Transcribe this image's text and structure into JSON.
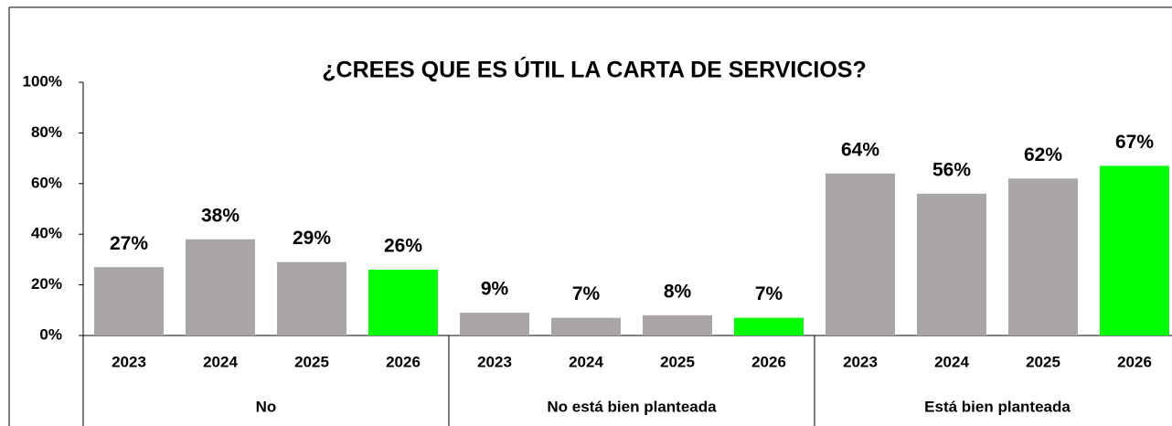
{
  "chart_data": {
    "type": "bar",
    "title": "¿CREES QUE ES ÚTIL LA CARTA DE SERVICIOS?",
    "groups": [
      {
        "name": "No",
        "categories": [
          "2023",
          "2024",
          "2025",
          "2026"
        ],
        "values": [
          27,
          38,
          29,
          26
        ],
        "value_labels": [
          "27%",
          "38%",
          "29%",
          "26%"
        ],
        "colors": [
          "#aaa6a5",
          "#aaa6a5",
          "#aaa6a5",
          "#00ff00"
        ]
      },
      {
        "name": "No está bien planteada",
        "categories": [
          "2023",
          "2024",
          "2025",
          "2026"
        ],
        "values": [
          9,
          7,
          8,
          7
        ],
        "value_labels": [
          "9%",
          "7%",
          "8%",
          "7%"
        ],
        "colors": [
          "#aaa6a5",
          "#aaa6a5",
          "#aaa6a5",
          "#00ff00"
        ]
      },
      {
        "name": "Está bien planteada",
        "categories": [
          "2023",
          "2024",
          "2025",
          "2026"
        ],
        "values": [
          64,
          56,
          62,
          67
        ],
        "value_labels": [
          "64%",
          "56%",
          "62%",
          "67%"
        ],
        "colors": [
          "#aaa6a5",
          "#aaa6a5",
          "#aaa6a5",
          "#00ff00"
        ]
      }
    ],
    "ylim": [
      0,
      100
    ],
    "yticks": [
      {
        "value": 0,
        "label": "0%"
      },
      {
        "value": 20,
        "label": "20%"
      },
      {
        "value": 40,
        "label": "40%"
      },
      {
        "value": 60,
        "label": "60%"
      },
      {
        "value": 80,
        "label": "80%"
      },
      {
        "value": 100,
        "label": "100%"
      }
    ],
    "grid": false
  }
}
